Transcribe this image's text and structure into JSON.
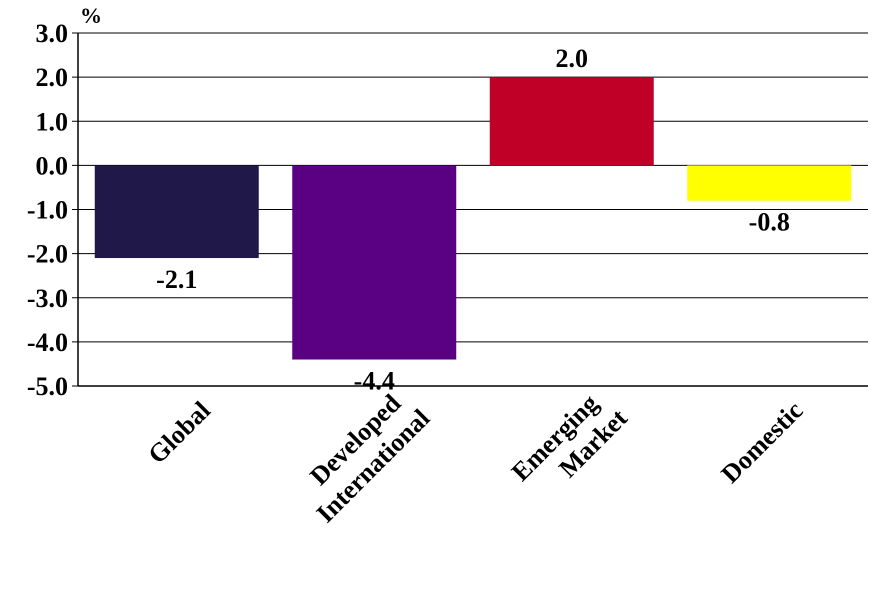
{
  "chart_data": {
    "type": "bar",
    "title": "",
    "xlabel": "",
    "ylabel": "",
    "unit_label": "%",
    "categories": [
      [
        "Global"
      ],
      [
        "Developed",
        "International"
      ],
      [
        "Emerging",
        "Market"
      ],
      [
        "Domestic"
      ]
    ],
    "values": [
      -2.1,
      -4.4,
      2.0,
      -0.8
    ],
    "value_labels": [
      "-2.1",
      "-4.4",
      "2.0",
      "-0.8"
    ],
    "colors": [
      "#201848",
      "#5a0082",
      "#c00026",
      "#ffff00"
    ],
    "ylim": [
      -5.0,
      3.0
    ],
    "yticks": [
      3.0,
      2.0,
      1.0,
      0.0,
      -1.0,
      -2.0,
      -3.0,
      -4.0,
      -5.0
    ],
    "ytick_labels": [
      "3.0",
      "2.0",
      "1.0",
      "0.0",
      "-1.0",
      "-2.0",
      "-3.0",
      "-4.0",
      "-5.0"
    ],
    "grid": true,
    "legend": "none"
  }
}
